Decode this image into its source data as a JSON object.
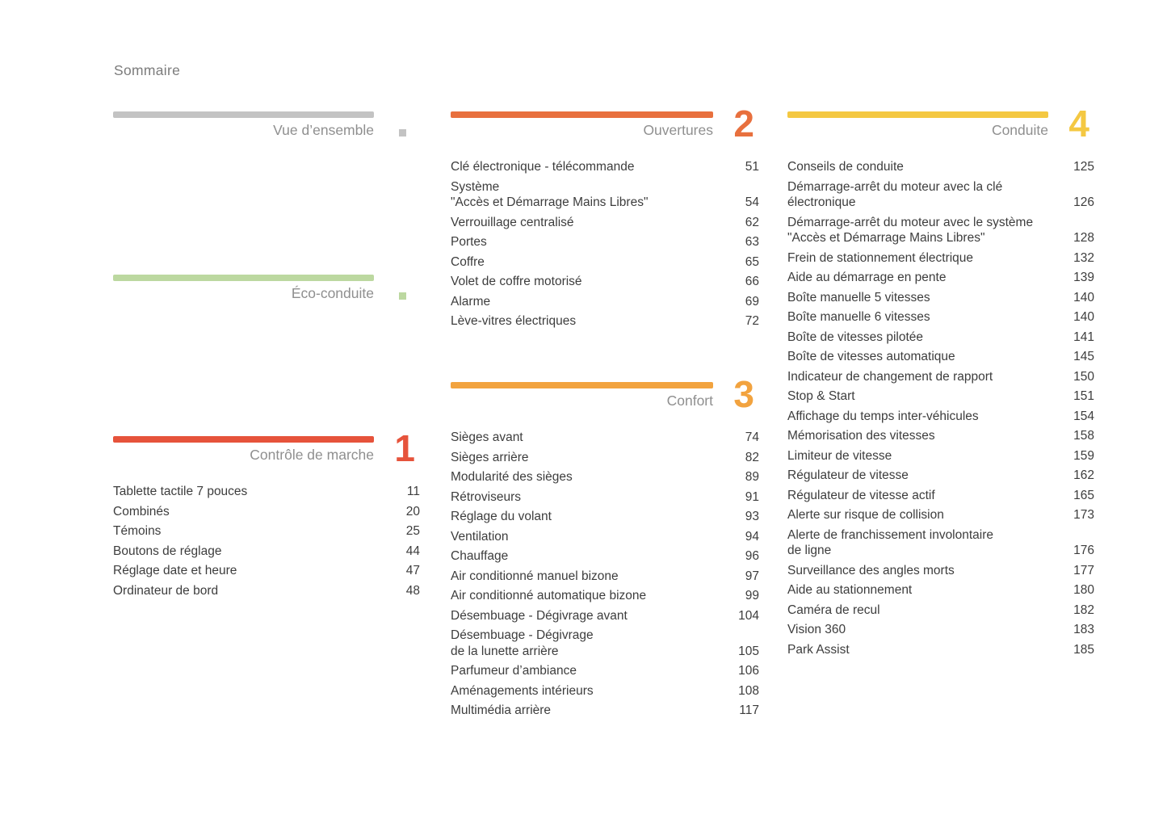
{
  "page_title": "Sommaire",
  "colors": {
    "item_text": "#3d3d3d",
    "section_title_text": "#8f8f8f",
    "page_title_text": "#7c7c7c"
  },
  "sections": [
    {
      "title": "Vue d’ensemble",
      "number": "",
      "accent": "#c3c3c3",
      "marker": "square",
      "items": []
    },
    {
      "title": "Éco-conduite",
      "number": "",
      "accent": "#bcd8a0",
      "marker": "square",
      "items": []
    },
    {
      "title": "Contrôle de marche",
      "number": "1",
      "accent": "#e6533b",
      "marker": "number",
      "items": [
        {
          "label": "Tablette tactile 7 pouces",
          "page": "11"
        },
        {
          "label": "Combinés",
          "page": "20"
        },
        {
          "label": "Témoins",
          "page": "25"
        },
        {
          "label": "Boutons de réglage",
          "page": "44"
        },
        {
          "label": "Réglage date et heure",
          "page": "47"
        },
        {
          "label": "Ordinateur de bord",
          "page": "48"
        }
      ]
    },
    {
      "title": "Ouvertures",
      "number": "2",
      "accent": "#e8703e",
      "marker": "number",
      "items": [
        {
          "label": "Clé électronique - télécommande",
          "page": "51"
        },
        {
          "label": "Système\n\"Accès et Démarrage Mains Libres\"",
          "page": "54"
        },
        {
          "label": "Verrouillage centralisé",
          "page": "62"
        },
        {
          "label": "Portes",
          "page": "63"
        },
        {
          "label": "Coffre",
          "page": "65"
        },
        {
          "label": "Volet de coffre motorisé",
          "page": "66"
        },
        {
          "label": "Alarme",
          "page": "69"
        },
        {
          "label": "Lève-vitres électriques",
          "page": "72"
        }
      ]
    },
    {
      "title": "Confort",
      "number": "3",
      "accent": "#f2a33f",
      "marker": "number",
      "items": [
        {
          "label": "Sièges avant",
          "page": "74"
        },
        {
          "label": "Sièges arrière",
          "page": "82"
        },
        {
          "label": "Modularité des sièges",
          "page": "89"
        },
        {
          "label": "Rétroviseurs",
          "page": "91"
        },
        {
          "label": "Réglage du volant",
          "page": "93"
        },
        {
          "label": "Ventilation",
          "page": "94"
        },
        {
          "label": "Chauffage",
          "page": "96"
        },
        {
          "label": "Air conditionné manuel bizone",
          "page": "97"
        },
        {
          "label": "Air conditionné automatique bizone",
          "page": "99"
        },
        {
          "label": "Désembuage - Dégivrage avant",
          "page": "104"
        },
        {
          "label": "Désembuage - Dégivrage\nde la lunette arrière",
          "page": "105"
        },
        {
          "label": "Parfumeur d’ambiance",
          "page": "106"
        },
        {
          "label": "Aménagements intérieurs",
          "page": "108"
        },
        {
          "label": "Multimédia arrière",
          "page": "117"
        }
      ]
    },
    {
      "title": "Conduite",
      "number": "4",
      "accent": "#f4c842",
      "marker": "number",
      "items": [
        {
          "label": "Conseils de conduite",
          "page": "125"
        },
        {
          "label": "Démarrage-arrêt du moteur avec la clé\nélectronique",
          "page": "126"
        },
        {
          "label": "Démarrage-arrêt du moteur avec le système\n\"Accès et Démarrage Mains Libres\"",
          "page": "128"
        },
        {
          "label": "Frein de stationnement électrique",
          "page": "132"
        },
        {
          "label": "Aide au démarrage en pente",
          "page": "139"
        },
        {
          "label": "Boîte manuelle 5 vitesses",
          "page": "140"
        },
        {
          "label": "Boîte manuelle 6 vitesses",
          "page": "140"
        },
        {
          "label": "Boîte de vitesses pilotée",
          "page": "141"
        },
        {
          "label": "Boîte de vitesses automatique",
          "page": "145"
        },
        {
          "label": "Indicateur de changement de rapport",
          "page": "150"
        },
        {
          "label": "Stop & Start",
          "page": "151"
        },
        {
          "label": "Affichage du temps inter-véhicules",
          "page": "154"
        },
        {
          "label": "Mémorisation des vitesses",
          "page": "158"
        },
        {
          "label": "Limiteur de vitesse",
          "page": "159"
        },
        {
          "label": "Régulateur de vitesse",
          "page": "162"
        },
        {
          "label": "Régulateur de vitesse actif",
          "page": "165"
        },
        {
          "label": "Alerte sur risque de collision",
          "page": "173"
        },
        {
          "label": "Alerte de franchissement involontaire\nde ligne",
          "page": "176"
        },
        {
          "label": "Surveillance des angles morts",
          "page": "177"
        },
        {
          "label": "Aide au stationnement",
          "page": "180"
        },
        {
          "label": "Caméra de recul",
          "page": "182"
        },
        {
          "label": "Vision 360",
          "page": "183"
        },
        {
          "label": "Park Assist",
          "page": "185"
        }
      ]
    }
  ]
}
